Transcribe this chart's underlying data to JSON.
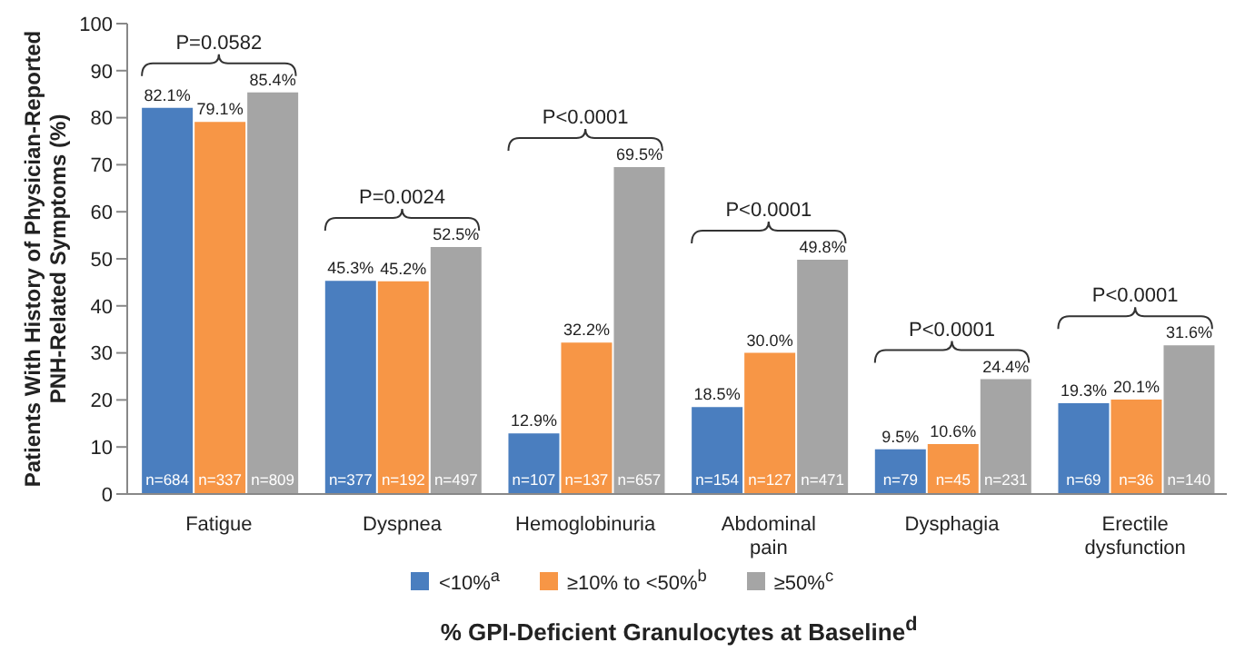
{
  "chart_data": {
    "type": "bar",
    "ylabel": "Patients With History of Physician-Reported PNH-Related Symptoms (%)",
    "xlabel": "% GPI-Deficient Granulocytes at Baseline$^{d}$",
    "categories": [
      "Fatigue",
      "Dyspnea",
      "Hemoglobinuria",
      "Abdominal pain",
      "Dysphagia",
      "Erectile dysfunction"
    ],
    "series": [
      {
        "name": "<10%$^{a}$",
        "color": "#4a7ebf",
        "values": [
          82.1,
          45.3,
          12.9,
          18.5,
          9.5,
          19.3
        ],
        "value_labels": [
          "82.1%",
          "45.3%",
          "12.9%",
          "18.5%",
          "9.5%",
          "19.3%"
        ]
      },
      {
        "name": "≥10% to <50%$^{b}$",
        "color": "#f79646",
        "values": [
          79.1,
          45.2,
          32.2,
          30.0,
          10.6,
          20.1
        ],
        "value_labels": [
          "79.1%",
          "45.2%",
          "32.2%",
          "30.0%",
          "10.6%",
          "20.1%"
        ]
      },
      {
        "name": "≥50%$^{c}$",
        "color": "#a5a5a5",
        "values": [
          85.4,
          52.5,
          69.5,
          49.8,
          24.4,
          31.6
        ],
        "value_labels": [
          "85.4%",
          "52.5%",
          "69.5%",
          "49.8%",
          "24.4%",
          "31.6%"
        ]
      }
    ],
    "ylim": [
      0,
      100
    ],
    "yticks": [
      0,
      10,
      20,
      30,
      40,
      50,
      60,
      70,
      80,
      90,
      100
    ],
    "legend": "bottom",
    "annotations": [
      "n=684",
      "n=377",
      "n=107",
      "n=154",
      "n=79",
      "n=69",
      "n=337",
      "n=192",
      "n=137",
      "n=127",
      "n=45",
      "n=36",
      "n=809",
      "n=497",
      "n=657",
      "n=471",
      "n=231",
      "n=140",
      "P=0.0582",
      "P=0.0024",
      "P<0.0001",
      "P<0.0001",
      "P<0.0001",
      "P<0.0001"
    ]
  }
}
